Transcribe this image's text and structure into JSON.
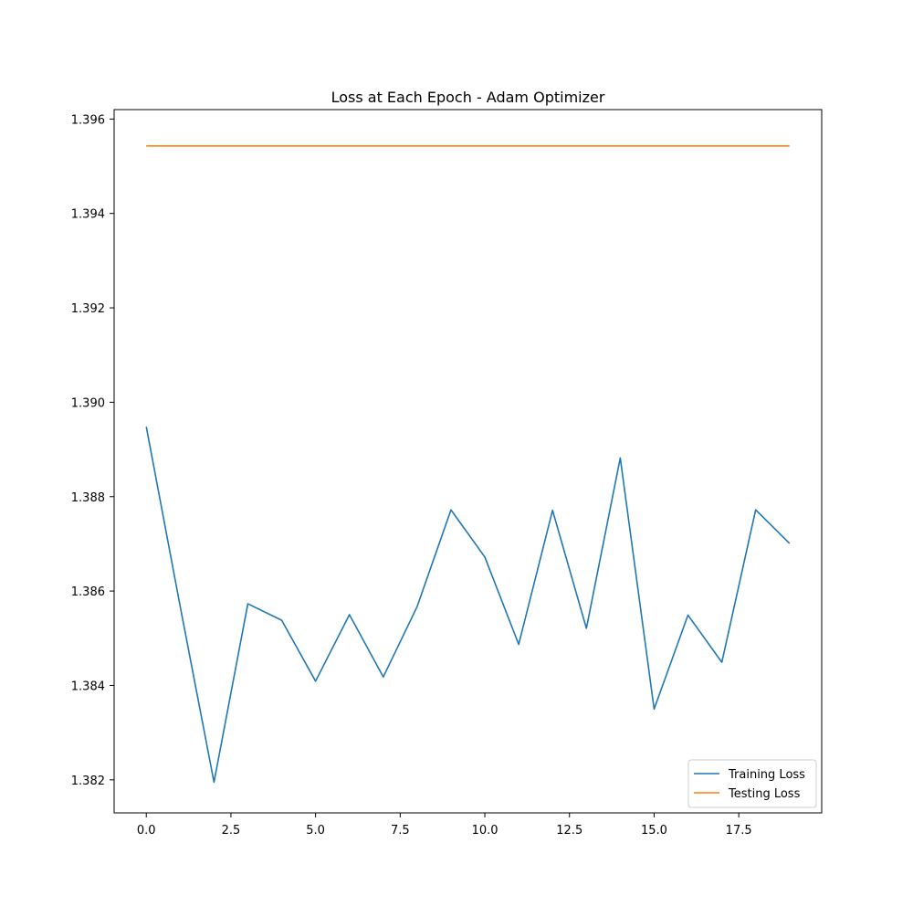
{
  "chart_data": {
    "type": "line",
    "title": "Loss at Each Epoch - Adam Optimizer",
    "xlabel": "",
    "ylabel": "",
    "xlim": [
      -0.95,
      19.95
    ],
    "ylim": [
      1.3813,
      1.3962
    ],
    "grid": false,
    "legend_position": "lower-right",
    "x_ticks": [
      0.0,
      2.5,
      5.0,
      7.5,
      10.0,
      12.5,
      15.0,
      17.5
    ],
    "x_tick_labels": [
      "0.0",
      "2.5",
      "5.0",
      "7.5",
      "10.0",
      "12.5",
      "15.0",
      "17.5"
    ],
    "y_ticks": [
      1.382,
      1.384,
      1.386,
      1.388,
      1.39,
      1.392,
      1.394,
      1.396
    ],
    "y_tick_labels": [
      "1.382",
      "1.384",
      "1.386",
      "1.388",
      "1.390",
      "1.392",
      "1.394",
      "1.396"
    ],
    "x": [
      0,
      1,
      2,
      3,
      4,
      5,
      6,
      7,
      8,
      9,
      10,
      11,
      12,
      13,
      14,
      15,
      16,
      17,
      18,
      19
    ],
    "series": [
      {
        "name": "Training Loss",
        "color": "#1f77b4",
        "values": [
          1.38948,
          1.38568,
          1.38195,
          1.38573,
          1.38538,
          1.38409,
          1.3855,
          1.38418,
          1.38567,
          1.38772,
          1.38672,
          1.38487,
          1.38771,
          1.38521,
          1.38882,
          1.3835,
          1.38549,
          1.38449,
          1.38772,
          1.38701
        ]
      },
      {
        "name": "Testing Loss",
        "color": "#ff7f0e",
        "values": [
          1.39543,
          1.39543,
          1.39543,
          1.39543,
          1.39543,
          1.39543,
          1.39543,
          1.39543,
          1.39543,
          1.39543,
          1.39543,
          1.39543,
          1.39543,
          1.39543,
          1.39543,
          1.39543,
          1.39543,
          1.39543,
          1.39543,
          1.39543
        ]
      }
    ]
  }
}
